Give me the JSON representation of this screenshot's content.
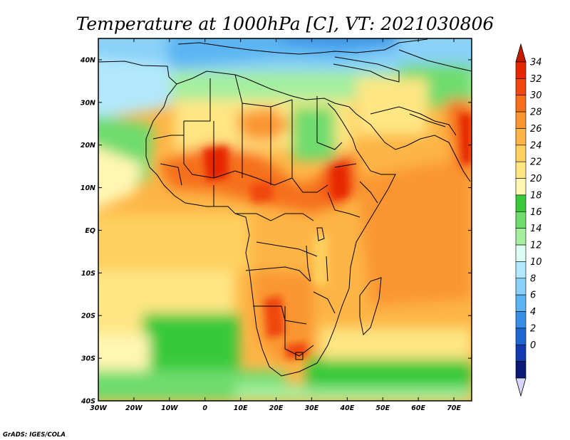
{
  "title": "Temperature at 1000hPa [C], VT: 2021030806",
  "credit": "GrADS: IGES/COLA",
  "map": {
    "lon_labels": [
      "30W",
      "20W",
      "10W",
      "0",
      "10E",
      "20E",
      "30E",
      "40E",
      "50E",
      "60E",
      "70E"
    ],
    "lat_labels": [
      "40N",
      "30N",
      "20N",
      "10N",
      "EQ",
      "10S",
      "20S",
      "30S",
      "40S"
    ],
    "lon_range": [
      -30,
      75
    ],
    "lat_range": [
      -40,
      45
    ]
  },
  "colorbar": {
    "labels": [
      "34",
      "32",
      "30",
      "28",
      "26",
      "24",
      "22",
      "20",
      "18",
      "16",
      "14",
      "12",
      "10",
      "8",
      "6",
      "4",
      "2",
      "0"
    ],
    "colors_top_to_bottom": [
      "#e62800",
      "#f0470e",
      "#f66f1d",
      "#fa9630",
      "#fdb546",
      "#fed05f",
      "#fee683",
      "#fff6b3",
      "#39c93a",
      "#6fdc6e",
      "#a4ee9e",
      "#dcfcf4",
      "#b2e8fb",
      "#89d1f8",
      "#5cb5f2",
      "#3790e6",
      "#1e66d2",
      "#1239ad",
      "#0b1a74"
    ],
    "over_color": "#c41a00",
    "under_color": "#d8d6f8"
  }
}
